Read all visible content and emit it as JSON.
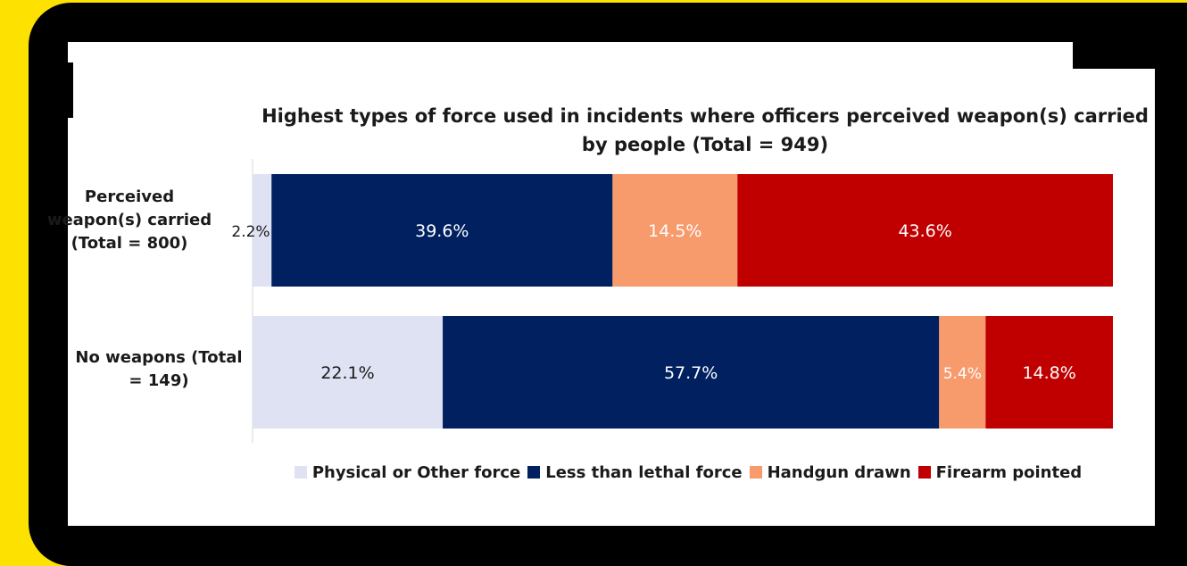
{
  "chart_data": {
    "type": "bar",
    "orientation": "horizontal",
    "stacked": true,
    "normalized": true,
    "title": "Highest types of force used in incidents where officers perceived weapon(s) carried by people (Total = 949)",
    "categories": [
      "Perceived weapon(s) carried (Total = 800)",
      "No weapons (Total = 149)"
    ],
    "series": [
      {
        "name": "Physical or Other force",
        "color": "#dfe2f3",
        "values": [
          2.2,
          22.1
        ],
        "labels": [
          "2.2%",
          "22.1%"
        ]
      },
      {
        "name": "Less than lethal force",
        "color": "#002060",
        "values": [
          39.6,
          57.7
        ],
        "labels": [
          "39.6%",
          "57.7%"
        ]
      },
      {
        "name": "Handgun drawn",
        "color": "#f79a6c",
        "values": [
          14.5,
          5.4
        ],
        "labels": [
          "14.5%",
          "5.4%"
        ]
      },
      {
        "name": "Firearm pointed",
        "color": "#c00000",
        "values": [
          43.6,
          14.8
        ],
        "labels": [
          "43.6%",
          "14.8%"
        ]
      }
    ],
    "xlim": [
      0,
      100
    ],
    "legend": "bottom",
    "grid": false
  },
  "frame": {
    "background": "#000000",
    "accent": "#fde100"
  }
}
